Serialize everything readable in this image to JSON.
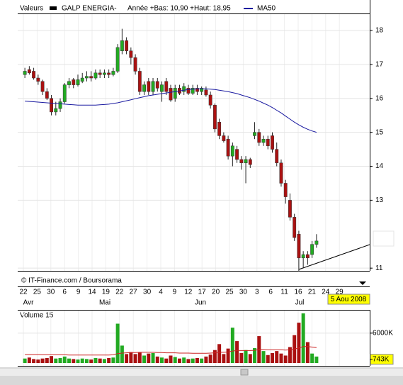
{
  "chart_data": {
    "type": "candlestick",
    "legend_label": "Valeurs",
    "title": "GALP ENERGIA-",
    "subtitle": "Année +Bas: 10,90 +Haut: 18,95",
    "source": "© IT-Finance.com / Boursorama",
    "date_label": "5 Aou 2008",
    "x_labels": [
      "22",
      "25",
      "30",
      "6",
      "9",
      "14",
      "19",
      "22",
      "27",
      "30",
      "4",
      "9",
      "12",
      "17",
      "20",
      "25",
      "30",
      "3",
      "6",
      "11",
      "16",
      "21",
      "24",
      "29"
    ],
    "months": [
      "Avr",
      "Mai",
      "Jun",
      "Jul"
    ],
    "up_color": "#22aa22",
    "down_color": "#aa1111",
    "open": [
      16.7,
      16.85,
      16.8,
      16.6,
      16.5,
      16.2,
      16.0,
      15.6,
      15.7,
      15.9,
      16.4,
      16.55,
      16.4,
      16.5,
      16.6,
      16.65,
      16.6,
      16.75,
      16.7,
      16.75,
      16.7,
      16.8,
      17.4,
      17.7,
      17.4,
      17.2,
      16.8,
      16.2,
      16.5,
      16.2,
      16.5,
      16.2,
      16.5,
      16.3,
      16.0,
      16.3,
      16.2,
      16.3,
      16.15,
      16.3,
      16.2,
      16.25,
      16.1,
      15.8,
      15.3,
      14.9,
      14.8,
      14.3,
      14.5,
      14.2,
      14.1,
      14.2,
      14.9,
      15.0,
      14.7,
      14.8,
      14.9,
      14.5,
      14.1,
      13.5,
      13.0,
      12.5,
      12.0,
      11.3,
      11.4,
      11.4,
      11.7
    ],
    "high": [
      16.9,
      16.95,
      16.9,
      16.7,
      16.55,
      16.3,
      16.1,
      15.9,
      16.0,
      16.45,
      16.6,
      16.6,
      16.7,
      16.75,
      16.8,
      16.8,
      16.85,
      16.85,
      16.85,
      16.85,
      16.9,
      17.6,
      18.05,
      17.8,
      17.5,
      17.3,
      16.9,
      16.5,
      16.6,
      16.6,
      16.6,
      16.5,
      16.6,
      16.4,
      16.4,
      16.4,
      16.45,
      16.4,
      16.4,
      16.4,
      16.35,
      16.35,
      16.2,
      15.85,
      15.4,
      15.0,
      14.9,
      14.7,
      14.6,
      14.3,
      14.3,
      14.25,
      15.3,
      15.1,
      14.9,
      14.9,
      15.0,
      14.7,
      14.2,
      13.6,
      13.2,
      12.6,
      12.1,
      11.5,
      11.5,
      11.8,
      12.0
    ],
    "low": [
      16.6,
      16.7,
      16.55,
      16.4,
      16.1,
      15.95,
      15.5,
      15.5,
      15.6,
      15.85,
      16.3,
      16.3,
      16.35,
      16.45,
      16.5,
      16.5,
      16.55,
      16.6,
      16.6,
      16.6,
      16.65,
      16.75,
      17.3,
      17.3,
      17.0,
      16.7,
      16.1,
      16.1,
      16.1,
      16.1,
      16.2,
      15.9,
      16.1,
      15.9,
      15.9,
      16.1,
      16.1,
      16.1,
      16.1,
      16.1,
      16.1,
      16.05,
      15.7,
      15.0,
      14.8,
      14.7,
      14.2,
      14.0,
      14.1,
      13.9,
      13.5,
      13.95,
      14.8,
      14.6,
      14.6,
      14.5,
      14.4,
      14.0,
      13.4,
      12.9,
      12.4,
      11.8,
      10.9,
      11.0,
      11.1,
      11.3,
      11.6
    ],
    "close": [
      16.8,
      16.75,
      16.6,
      16.5,
      16.2,
      16.0,
      15.6,
      15.7,
      15.9,
      16.4,
      16.5,
      16.4,
      16.55,
      16.6,
      16.65,
      16.6,
      16.75,
      16.7,
      16.75,
      16.7,
      16.8,
      17.5,
      17.7,
      17.4,
      17.2,
      16.8,
      16.2,
      16.4,
      16.2,
      16.5,
      16.3,
      16.4,
      16.2,
      15.95,
      16.3,
      16.15,
      16.35,
      16.15,
      16.3,
      16.2,
      16.3,
      16.1,
      15.8,
      15.1,
      14.9,
      14.75,
      14.3,
      14.6,
      14.2,
      14.1,
      14.2,
      14.05,
      15.0,
      14.7,
      14.8,
      14.6,
      14.5,
      14.1,
      13.5,
      13.1,
      12.5,
      11.9,
      11.3,
      11.4,
      11.3,
      11.7,
      11.8
    ],
    "ma": {
      "name": "MA50",
      "color": "#1a1aa0",
      "values": [
        15.92,
        15.91,
        15.9,
        15.89,
        15.88,
        15.87,
        15.86,
        15.85,
        15.84,
        15.83,
        15.82,
        15.81,
        15.8,
        15.8,
        15.8,
        15.8,
        15.8,
        15.81,
        15.82,
        15.83,
        15.85,
        15.87,
        15.9,
        15.93,
        15.96,
        15.99,
        16.02,
        16.05,
        16.08,
        16.1,
        16.12,
        16.14,
        16.16,
        16.18,
        16.2,
        16.22,
        16.24,
        16.26,
        16.27,
        16.28,
        16.28,
        16.28,
        16.27,
        16.26,
        16.24,
        16.22,
        16.2,
        16.17,
        16.14,
        16.1,
        16.06,
        16.02,
        15.97,
        15.92,
        15.86,
        15.8,
        15.73,
        15.65,
        15.57,
        15.48,
        15.39,
        15.3,
        15.22,
        15.15,
        15.09,
        15.04,
        15.0
      ]
    },
    "ylim": [
      10.92,
      18.48
    ],
    "yticks": [
      11,
      13,
      14,
      15,
      16,
      17,
      18
    ],
    "grid": true,
    "volume": {
      "title": "Volume 15",
      "values": [
        900,
        1100,
        800,
        700,
        900,
        1000,
        1400,
        900,
        1000,
        1300,
        900,
        800,
        700,
        900,
        800,
        700,
        1000,
        900,
        800,
        1000,
        1100,
        7900,
        3500,
        1800,
        2200,
        1800,
        2100,
        1500,
        1900,
        2000,
        1300,
        1100,
        900,
        1500,
        1200,
        900,
        1100,
        800,
        900,
        1000,
        900,
        1300,
        1700,
        2600,
        3800,
        1800,
        2900,
        7100,
        4400,
        2000,
        2600,
        1800,
        3000,
        5400,
        2400,
        1600,
        2000,
        2400,
        1900,
        1500,
        3200,
        5600,
        8100,
        9970,
        4200,
        1900,
        1300
      ],
      "ma_color": "#cc2222",
      "ma_values": [
        1700,
        1700,
        1700,
        1700,
        1650,
        1650,
        1650,
        1650,
        1650,
        1650,
        1600,
        1600,
        1600,
        1600,
        1600,
        1600,
        1600,
        1600,
        1600,
        1600,
        1650,
        1900,
        2000,
        2050,
        2100,
        2100,
        2150,
        2150,
        2150,
        2150,
        2100,
        2100,
        2050,
        2050,
        2050,
        2000,
        2000,
        2000,
        1950,
        1950,
        1950,
        1950,
        2000,
        2050,
        2150,
        2150,
        2200,
        2400,
        2500,
        2500,
        2500,
        2500,
        2550,
        2700,
        2700,
        2650,
        2650,
        2650,
        2650,
        2600,
        2650,
        2800,
        3000,
        3300,
        3300,
        3200,
        3100
      ],
      "ylim": [
        0,
        10250
      ],
      "yticks": [
        {
          "value": 6000,
          "label": "6000K"
        },
        {
          "value": 743,
          "label": "743K"
        }
      ]
    }
  }
}
